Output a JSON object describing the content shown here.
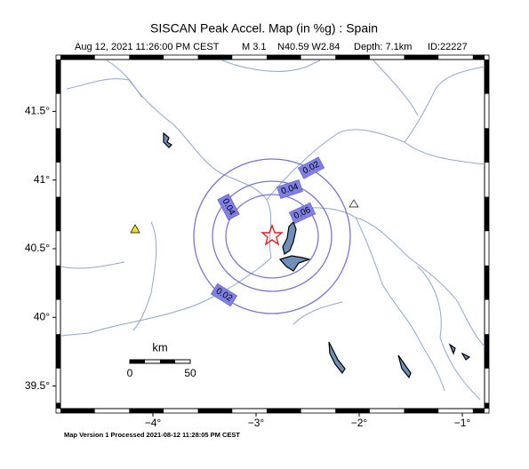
{
  "header": {
    "title": "SISCAN Peak Accel. Map (in %g) : Spain",
    "subtitle": {
      "date": "Aug 12, 2021 11:26:00 PM CEST",
      "magnitude": "M 3.1",
      "location": "N40.59 W2.84",
      "depth": "Depth: 7.1km",
      "id": "ID:22227"
    }
  },
  "map": {
    "lat_ticks": [
      {
        "value": 41.5,
        "label": "41.5°"
      },
      {
        "value": 41,
        "label": "41°"
      },
      {
        "value": 40.5,
        "label": "40.5°"
      },
      {
        "value": 40,
        "label": "40°"
      },
      {
        "value": 39.5,
        "label": "39.5°"
      }
    ],
    "lon_ticks": [
      {
        "value": -4,
        "label": "−4°"
      },
      {
        "value": -3,
        "label": "−3°"
      },
      {
        "value": -2,
        "label": "−2°"
      },
      {
        "value": -1,
        "label": "−1°"
      }
    ],
    "contour_labels": [
      "0.02",
      "0.04",
      "0.06",
      "0.04",
      "0.02"
    ],
    "scale_bar": {
      "unit": "km",
      "labels": [
        "0",
        "50"
      ]
    }
  },
  "footer": "Map Version 1 Processed 2021-08-12 11:28:05 PM CEST"
}
